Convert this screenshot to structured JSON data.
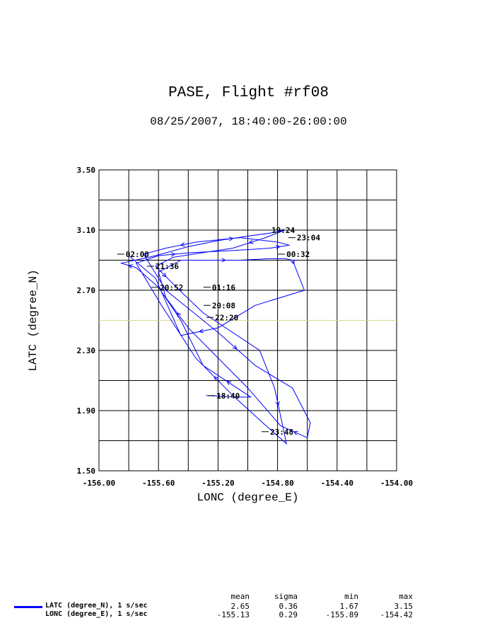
{
  "header": {
    "title": "PASE, Flight #rf08",
    "subtitle": "08/25/2007, 18:40:00-26:00:00"
  },
  "chart_data": {
    "type": "line",
    "xlabel": "LONC (degree_E)",
    "ylabel": "LATC (degree_N)",
    "xlim": [
      -156.0,
      -154.0
    ],
    "ylim": [
      1.5,
      3.5
    ],
    "x_ticks": [
      "-156.00",
      "-155.60",
      "-155.20",
      "-154.80",
      "-154.40",
      "-154.00"
    ],
    "y_ticks": [
      "1.50",
      "1.90",
      "2.30",
      "2.70",
      "3.10",
      "3.50"
    ],
    "grid": true,
    "reference_line_y": 2.5,
    "series": [
      {
        "name": "LATC (degree_N), 1 s/sec",
        "color": "#0000ff",
        "x": [
          -155.28,
          -155.05,
          -154.98,
          -155.3,
          -155.45,
          -155.6,
          -155.75,
          -155.85,
          -155.62,
          -155.4,
          -155.2,
          -155.0,
          -154.85,
          -154.75,
          -154.88,
          -155.1,
          -155.3,
          -155.5,
          -155.62,
          -155.48,
          -155.3,
          -154.92,
          -154.82,
          -154.77,
          -154.74,
          -154.9,
          -155.1,
          -155.35,
          -155.58,
          -155.75,
          -155.6,
          -155.38,
          -155.18,
          -155.0,
          -154.85,
          -154.72,
          -154.8,
          -155.05,
          -155.35,
          -155.55,
          -155.7,
          -155.55,
          -155.2,
          -154.95,
          -154.7,
          -154.58,
          -154.6,
          -154.78,
          -155.0,
          -155.2,
          -155.4,
          -155.55,
          -155.6,
          -155.45,
          -155.25,
          -155.05,
          -154.85,
          -154.75,
          -154.7,
          -154.68,
          -154.62,
          -154.95,
          -155.2,
          -155.45,
          -155.62,
          -155.8
        ],
        "y": [
          2.0,
          1.99,
          1.99,
          2.2,
          2.5,
          2.72,
          2.85,
          2.88,
          2.93,
          2.99,
          3.03,
          3.06,
          3.08,
          3.1,
          3.05,
          2.98,
          2.95,
          2.92,
          2.86,
          2.72,
          2.55,
          2.3,
          2.05,
          1.82,
          1.68,
          1.82,
          2.0,
          2.25,
          2.6,
          2.88,
          2.93,
          2.95,
          2.96,
          2.97,
          2.98,
          3.0,
          3.02,
          3.05,
          3.02,
          2.98,
          2.94,
          2.7,
          2.42,
          2.2,
          2.05,
          1.82,
          1.72,
          1.8,
          2.05,
          2.25,
          2.45,
          2.65,
          2.82,
          2.9,
          2.9,
          2.9,
          2.91,
          2.91,
          2.9,
          2.85,
          2.7,
          2.6,
          2.45,
          2.4,
          2.78,
          2.93
        ]
      },
      {
        "name": "LONC (degree_E), 1 s/sec",
        "color": "#0000ff"
      }
    ],
    "annotations": [
      {
        "text": "19:24",
        "x": -154.85,
        "y": 3.1
      },
      {
        "text": "23:04",
        "x": -154.68,
        "y": 3.05
      },
      {
        "text": "00:32",
        "x": -154.75,
        "y": 2.94
      },
      {
        "text": "02:00",
        "x": -155.83,
        "y": 2.94
      },
      {
        "text": "21:36",
        "x": -155.63,
        "y": 2.86
      },
      {
        "text": "20:52",
        "x": -155.6,
        "y": 2.72
      },
      {
        "text": "01:16",
        "x": -155.25,
        "y": 2.72
      },
      {
        "text": "20:08",
        "x": -155.25,
        "y": 2.6
      },
      {
        "text": "22:20",
        "x": -155.23,
        "y": 2.52
      },
      {
        "text": "18:40",
        "x": -155.22,
        "y": 2.0
      },
      {
        "text": "23:48",
        "x": -154.86,
        "y": 1.76
      }
    ]
  },
  "stats": {
    "headers": [
      "mean",
      "sigma",
      "min",
      "max"
    ],
    "rows": [
      {
        "label": "LATC (degree_N), 1 s/sec",
        "mean": "2.65",
        "sigma": "0.36",
        "min": "1.67",
        "max": "3.15"
      },
      {
        "label": "LONC (degree_E), 1 s/sec",
        "mean": "-155.13",
        "sigma": "0.29",
        "min": "-155.89",
        "max": "-154.42"
      }
    ]
  }
}
